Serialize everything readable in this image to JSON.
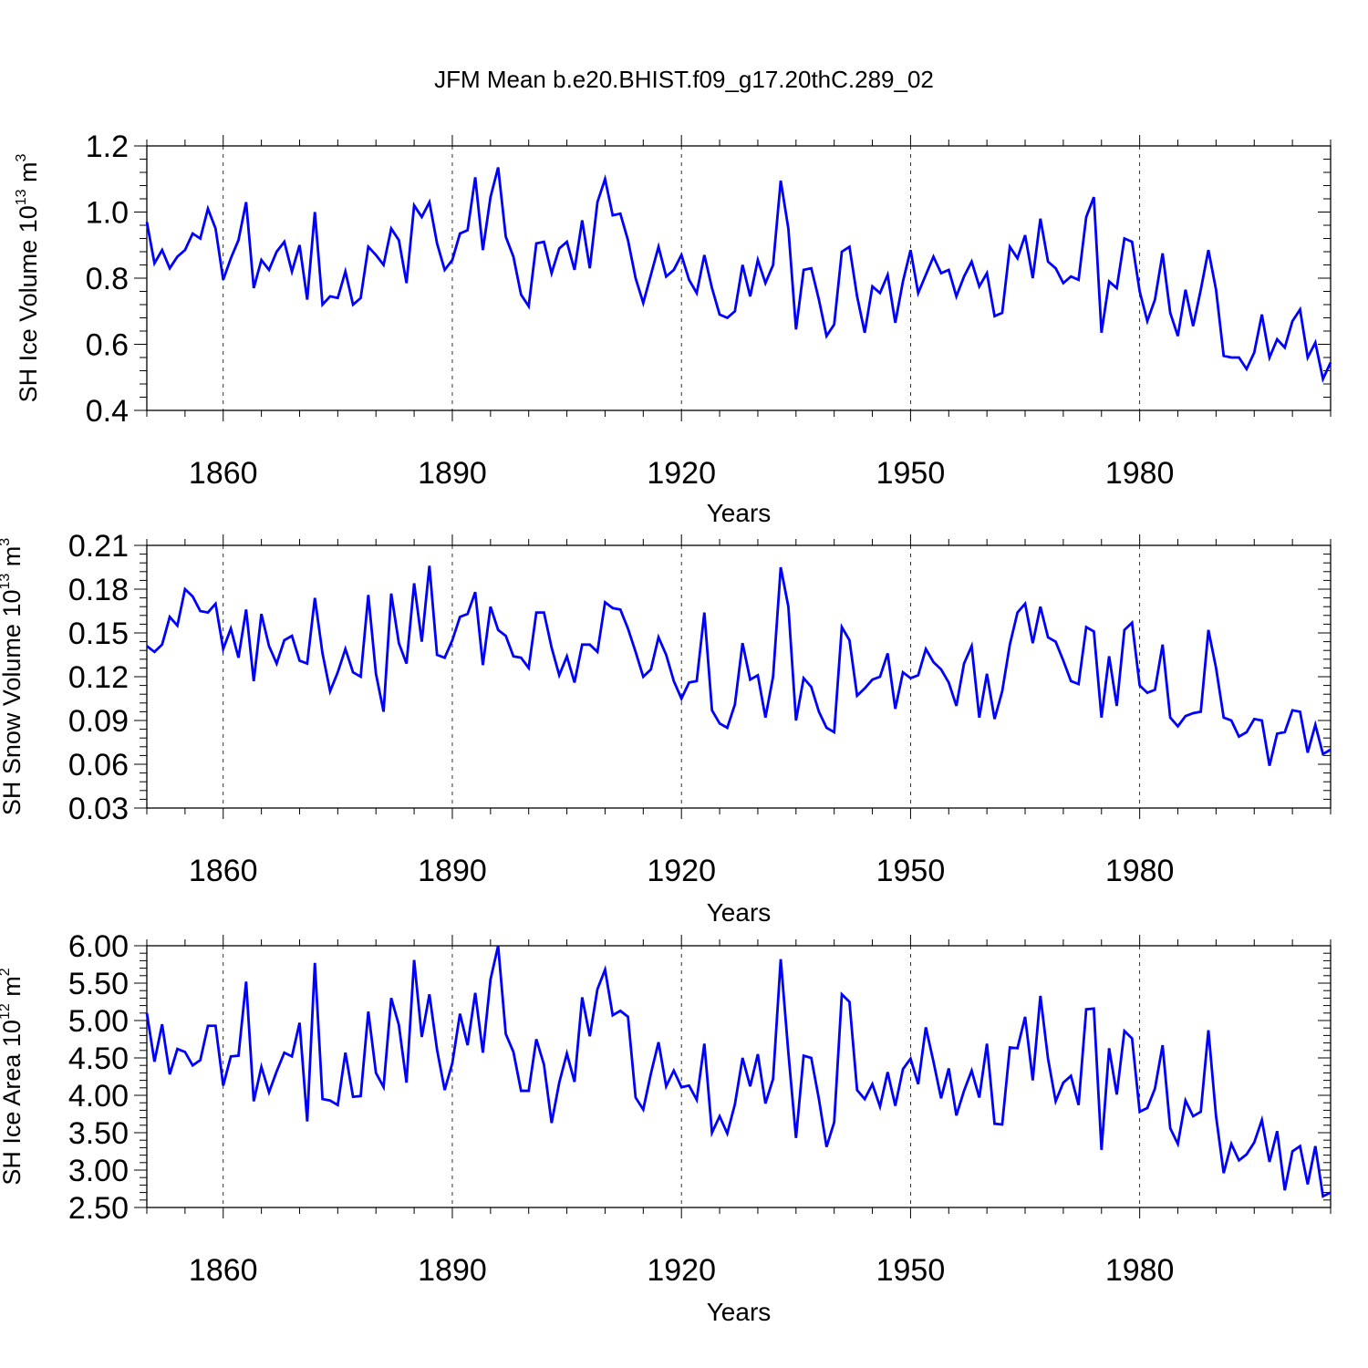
{
  "title": "JFM Mean b.e20.BHIST.f09_g17.20thC.289_02",
  "line_color": "#0000ff",
  "chart_data": [
    {
      "type": "line",
      "ylabel": "SH Ice Volume 10",
      "ylabel_exp": "13",
      "ylabel_unit": " m",
      "ylabel_unit_exp": "3",
      "xlabel": "Years",
      "xlim": [
        1850,
        2005
      ],
      "ylim": [
        0.4,
        1.2
      ],
      "ytick_values": [
        0.4,
        0.6,
        0.8,
        1.0,
        1.2
      ],
      "ytick_labels": [
        "0.4",
        "0.6",
        "0.8",
        "1.0",
        "1.2"
      ],
      "xtick_values": [
        1860,
        1890,
        1920,
        1950,
        1980
      ],
      "xtick_labels": [
        "1860",
        "1890",
        "1920",
        "1950",
        "1980"
      ],
      "series": [
        {
          "name": "SH Ice Volume",
          "x_start": 1850,
          "values": [
            0.97,
            0.845,
            0.885,
            0.83,
            0.865,
            0.885,
            0.935,
            0.92,
            1.01,
            0.95,
            0.795,
            0.86,
            0.915,
            1.03,
            0.77,
            0.855,
            0.825,
            0.88,
            0.91,
            0.82,
            0.9,
            0.735,
            1.0,
            0.72,
            0.745,
            0.74,
            0.82,
            0.72,
            0.74,
            0.895,
            0.87,
            0.84,
            0.95,
            0.915,
            0.785,
            1.02,
            0.985,
            1.03,
            0.905,
            0.825,
            0.855,
            0.935,
            0.945,
            1.105,
            0.885,
            1.045,
            1.135,
            0.925,
            0.865,
            0.75,
            0.715,
            0.905,
            0.91,
            0.815,
            0.89,
            0.91,
            0.825,
            0.975,
            0.83,
            1.03,
            1.1,
            0.99,
            0.995,
            0.915,
            0.8,
            0.725,
            0.81,
            0.895,
            0.805,
            0.825,
            0.87,
            0.795,
            0.755,
            0.87,
            0.77,
            0.69,
            0.68,
            0.7,
            0.84,
            0.745,
            0.855,
            0.785,
            0.84,
            1.095,
            0.95,
            0.645,
            0.825,
            0.83,
            0.735,
            0.625,
            0.66,
            0.88,
            0.895,
            0.745,
            0.635,
            0.775,
            0.755,
            0.81,
            0.665,
            0.79,
            0.885,
            0.755,
            0.81,
            0.865,
            0.815,
            0.825,
            0.745,
            0.805,
            0.85,
            0.775,
            0.815,
            0.685,
            0.695,
            0.895,
            0.86,
            0.93,
            0.8,
            0.98,
            0.85,
            0.83,
            0.785,
            0.805,
            0.795,
            0.985,
            1.045,
            0.635,
            0.79,
            0.77,
            0.92,
            0.91,
            0.76,
            0.67,
            0.735,
            0.875,
            0.695,
            0.625,
            0.765,
            0.655,
            0.765,
            0.885,
            0.765,
            0.565,
            0.56,
            0.56,
            0.525,
            0.575,
            0.69,
            0.56,
            0.615,
            0.59,
            0.67,
            0.705,
            0.56,
            0.605,
            0.495,
            0.545
          ]
        }
      ]
    },
    {
      "type": "line",
      "ylabel": "SH Snow Volume 10",
      "ylabel_exp": "13",
      "ylabel_unit": " m",
      "ylabel_unit_exp": "3",
      "xlabel": "Years",
      "xlim": [
        1850,
        2005
      ],
      "ylim": [
        0.03,
        0.21
      ],
      "ytick_values": [
        0.03,
        0.06,
        0.09,
        0.12,
        0.15,
        0.18,
        0.21
      ],
      "ytick_labels": [
        "0.03",
        "0.06",
        "0.09",
        "0.12",
        "0.15",
        "0.18",
        "0.21"
      ],
      "xtick_values": [
        1860,
        1890,
        1920,
        1950,
        1980
      ],
      "xtick_labels": [
        "1860",
        "1890",
        "1920",
        "1950",
        "1980"
      ],
      "series": [
        {
          "name": "SH Snow Volume",
          "x_start": 1850,
          "values": [
            0.141,
            0.137,
            0.142,
            0.161,
            0.155,
            0.18,
            0.175,
            0.165,
            0.164,
            0.17,
            0.139,
            0.153,
            0.133,
            0.166,
            0.117,
            0.163,
            0.141,
            0.129,
            0.145,
            0.148,
            0.131,
            0.129,
            0.174,
            0.136,
            0.11,
            0.123,
            0.139,
            0.123,
            0.12,
            0.176,
            0.122,
            0.096,
            0.177,
            0.143,
            0.129,
            0.184,
            0.144,
            0.196,
            0.135,
            0.133,
            0.145,
            0.161,
            0.163,
            0.178,
            0.128,
            0.168,
            0.152,
            0.148,
            0.134,
            0.133,
            0.126,
            0.164,
            0.164,
            0.14,
            0.121,
            0.134,
            0.116,
            0.142,
            0.142,
            0.137,
            0.171,
            0.167,
            0.166,
            0.153,
            0.137,
            0.12,
            0.125,
            0.147,
            0.135,
            0.117,
            0.105,
            0.116,
            0.117,
            0.164,
            0.097,
            0.088,
            0.085,
            0.101,
            0.143,
            0.118,
            0.121,
            0.092,
            0.12,
            0.195,
            0.168,
            0.09,
            0.119,
            0.113,
            0.096,
            0.085,
            0.082,
            0.154,
            0.145,
            0.107,
            0.112,
            0.118,
            0.12,
            0.136,
            0.098,
            0.123,
            0.119,
            0.121,
            0.139,
            0.13,
            0.125,
            0.116,
            0.1,
            0.129,
            0.141,
            0.092,
            0.122,
            0.091,
            0.11,
            0.142,
            0.164,
            0.17,
            0.143,
            0.168,
            0.147,
            0.144,
            0.131,
            0.117,
            0.115,
            0.154,
            0.151,
            0.092,
            0.134,
            0.1,
            0.152,
            0.157,
            0.114,
            0.109,
            0.111,
            0.142,
            0.092,
            0.086,
            0.093,
            0.095,
            0.096,
            0.152,
            0.126,
            0.092,
            0.09,
            0.079,
            0.082,
            0.091,
            0.09,
            0.059,
            0.081,
            0.082,
            0.097,
            0.096,
            0.068,
            0.087,
            0.067,
            0.07
          ]
        }
      ]
    },
    {
      "type": "line",
      "ylabel": "SH Ice Area 10",
      "ylabel_exp": "12",
      "ylabel_unit": " m",
      "ylabel_unit_exp": "2",
      "xlabel": "Years",
      "xlim": [
        1850,
        2005
      ],
      "ylim": [
        2.5,
        6.0
      ],
      "ytick_values": [
        2.5,
        3.0,
        3.5,
        4.0,
        4.5,
        5.0,
        5.5,
        6.0
      ],
      "ytick_labels": [
        "2.50",
        "3.00",
        "3.50",
        "4.00",
        "4.50",
        "5.00",
        "5.50",
        "6.00"
      ],
      "xtick_values": [
        1860,
        1890,
        1920,
        1950,
        1980
      ],
      "xtick_labels": [
        "1860",
        "1890",
        "1920",
        "1950",
        "1980"
      ],
      "series": [
        {
          "name": "SH Ice Area",
          "x_start": 1850,
          "values": [
            5.1,
            4.45,
            4.95,
            4.28,
            4.62,
            4.58,
            4.4,
            4.47,
            4.93,
            4.93,
            4.13,
            4.52,
            4.53,
            5.52,
            3.92,
            4.38,
            4.04,
            4.32,
            4.57,
            4.52,
            4.97,
            3.65,
            5.77,
            3.95,
            3.93,
            3.87,
            4.57,
            3.98,
            3.99,
            5.12,
            4.3,
            4.11,
            5.3,
            4.94,
            4.17,
            5.81,
            4.78,
            5.35,
            4.61,
            4.07,
            4.43,
            5.09,
            4.67,
            5.37,
            4.57,
            5.55,
            6.0,
            4.82,
            4.58,
            4.06,
            4.06,
            4.75,
            4.41,
            3.63,
            4.17,
            4.56,
            4.18,
            5.31,
            4.79,
            5.42,
            5.68,
            5.07,
            5.13,
            5.05,
            3.97,
            3.81,
            4.29,
            4.71,
            4.12,
            4.33,
            4.11,
            4.13,
            3.94,
            4.69,
            3.5,
            3.72,
            3.49,
            3.88,
            4.5,
            4.12,
            4.55,
            3.89,
            4.22,
            5.82,
            4.57,
            3.43,
            4.53,
            4.5,
            3.95,
            3.31,
            3.64,
            5.35,
            5.25,
            4.07,
            3.95,
            4.15,
            3.85,
            4.31,
            3.86,
            4.35,
            4.49,
            4.15,
            4.91,
            4.45,
            3.96,
            4.36,
            3.73,
            4.06,
            4.33,
            3.97,
            4.69,
            3.62,
            3.61,
            4.64,
            4.63,
            5.05,
            4.2,
            5.33,
            4.49,
            3.92,
            4.17,
            4.26,
            3.87,
            5.15,
            5.16,
            3.27,
            4.63,
            4.01,
            4.86,
            4.76,
            3.78,
            3.83,
            4.09,
            4.67,
            3.56,
            3.35,
            3.93,
            3.72,
            3.78,
            4.87,
            3.72,
            2.96,
            3.35,
            3.13,
            3.21,
            3.37,
            3.67,
            3.11,
            3.52,
            2.73,
            3.25,
            3.32,
            2.81,
            3.32,
            2.65,
            2.7
          ]
        }
      ]
    }
  ]
}
